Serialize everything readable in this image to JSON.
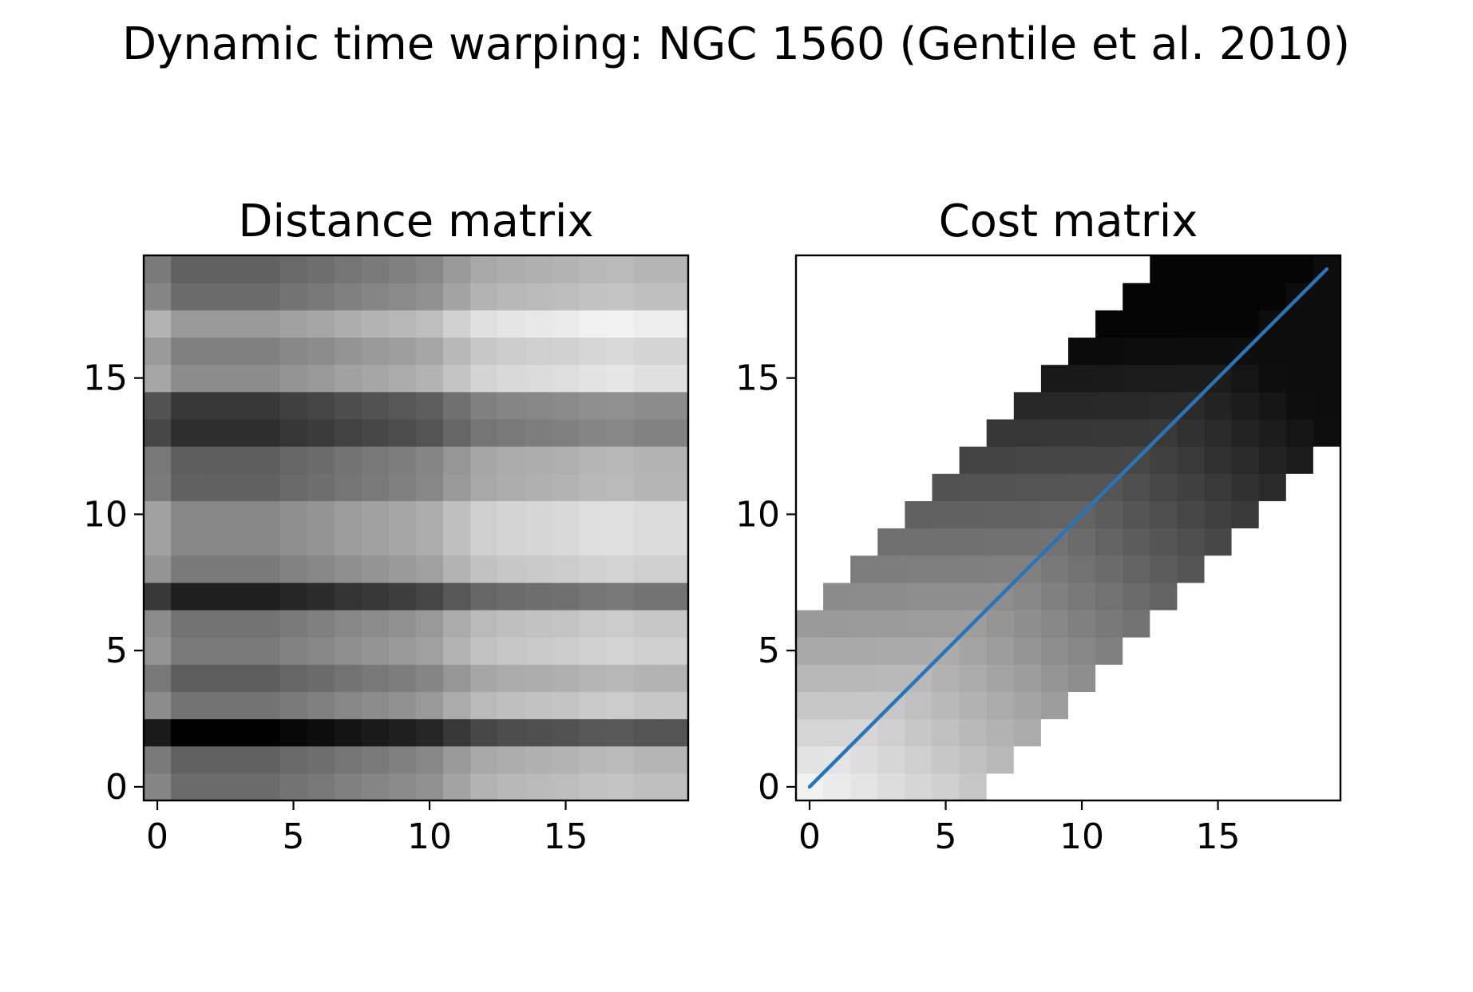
{
  "figure": {
    "suptitle": "Dynamic time warping: NGC 1560 (Gentile et al. 2010)"
  },
  "chart_data": [
    {
      "type": "heatmap",
      "title": "Distance matrix",
      "xlabel": "",
      "ylabel": "",
      "colormap": "gray",
      "origin": "lower",
      "xlim": [
        -0.5,
        19.5
      ],
      "ylim": [
        -0.5,
        19.5
      ],
      "xticks": [
        0,
        5,
        10,
        15
      ],
      "yticks": [
        0,
        5,
        10,
        15
      ],
      "row_base": [
        0.42,
        0.38,
        0.0,
        0.45,
        0.37,
        0.48,
        0.45,
        0.12,
        0.48,
        0.53,
        0.53,
        0.38,
        0.37,
        0.18,
        0.22,
        0.55,
        0.5,
        0.6,
        0.42,
        0.38
      ],
      "col_offset": [
        0.1,
        0.0,
        0.0,
        0.0,
        0.0,
        0.03,
        0.05,
        0.08,
        0.1,
        0.12,
        0.15,
        0.22,
        0.28,
        0.3,
        0.31,
        0.32,
        0.34,
        0.35,
        0.33,
        0.33
      ],
      "values_note": "cell brightness = min(1, row_base[row] + col_offset[col])"
    },
    {
      "type": "heatmap",
      "title": "Cost matrix",
      "xlabel": "",
      "ylabel": "",
      "colormap": "gray",
      "origin": "lower",
      "xlim": [
        -0.5,
        19.5
      ],
      "ylim": [
        -0.5,
        19.5
      ],
      "xticks": [
        0,
        5,
        10,
        15
      ],
      "yticks": [
        0,
        5,
        10,
        15
      ],
      "band_window": 6,
      "masked_color": "#ffffff",
      "warping_path": {
        "x": [
          0,
          19
        ],
        "y": [
          0,
          19
        ],
        "color": "#2a74b8"
      }
    }
  ]
}
